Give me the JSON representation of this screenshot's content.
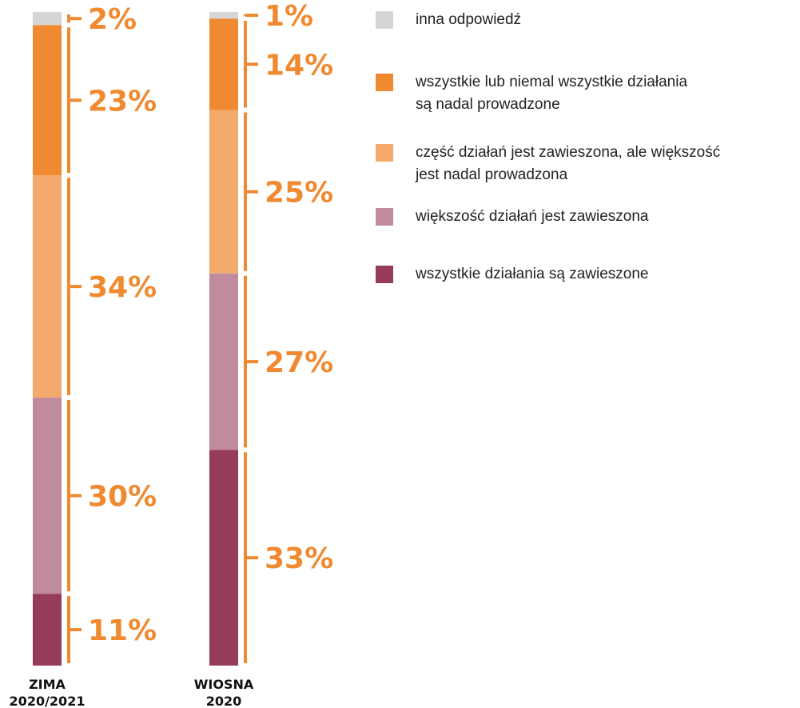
{
  "chart_data": {
    "type": "bar",
    "stacked": true,
    "orientation": "vertical",
    "categories": [
      "ZIMA 2020/2021",
      "WIOSNA 2020"
    ],
    "category_labels": [
      [
        "ZIMA",
        "2020/2021"
      ],
      [
        "WIOSNA",
        "2020"
      ]
    ],
    "series": [
      {
        "key": "all_suspended",
        "name": "wszystkie działania są zawieszone",
        "color": "#963b5b",
        "values": [
          11,
          33
        ]
      },
      {
        "key": "most_suspended",
        "name": "większość działań jest zawieszona",
        "color": "#c08a9f",
        "values": [
          30,
          27
        ]
      },
      {
        "key": "partly_suspended",
        "name": "część działań jest zawieszona, ale większość jest nadal prowadzona",
        "color": "#f3aa6c",
        "values": [
          34,
          25
        ]
      },
      {
        "key": "all_running",
        "name": "wszystkie lub niemal wszystkie działania są nadal prowadzone",
        "color": "#ef8a30",
        "values": [
          23,
          14
        ]
      },
      {
        "key": "other",
        "name": "inna odpowiedź",
        "color": "#d6d6d6",
        "values": [
          2,
          1
        ]
      }
    ],
    "value_labels": [
      [
        "11%",
        "30%",
        "34%",
        "23%",
        "2%"
      ],
      [
        "33%",
        "27%",
        "25%",
        "14%",
        "1%"
      ]
    ],
    "label_color": "#ef8a30",
    "legend_order": [
      "other",
      "all_running",
      "partly_suspended",
      "most_suspended",
      "all_suspended"
    ],
    "legend_lines": [
      [
        "inna odpowiedź"
      ],
      [
        "wszystkie lub niemal wszystkie działania",
        "są nadal prowadzone"
      ],
      [
        "część działań jest zawieszona, ale większość",
        "jest nadal prowadzona"
      ],
      [
        "większość działań jest zawieszona"
      ],
      [
        "wszystkie działania są zawieszone"
      ]
    ],
    "legend_position": "top-right",
    "grid": false,
    "ylim": [
      0,
      100
    ]
  }
}
